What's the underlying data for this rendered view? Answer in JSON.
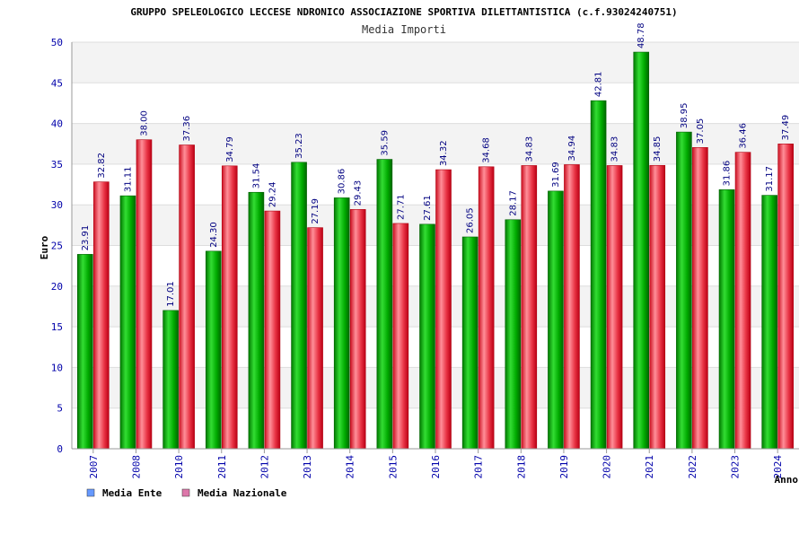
{
  "chart_data": {
    "type": "bar",
    "title": "GRUPPO SPELEOLOGICO LECCESE NDRONICO ASSOCIAZIONE SPORTIVA DILETTANTISTICA (c.f.93024240751)",
    "subtitle": "Media Importi",
    "xlabel": "Anno",
    "ylabel": "Euro",
    "ylim": [
      0,
      50
    ],
    "yticks": [
      0,
      5,
      10,
      15,
      20,
      25,
      30,
      35,
      40,
      45,
      50
    ],
    "grid": true,
    "legend_position": "bottom-left",
    "categories": [
      "2007",
      "2008",
      "2010",
      "2011",
      "2012",
      "2013",
      "2014",
      "2015",
      "2016",
      "2017",
      "2018",
      "2019",
      "2020",
      "2021",
      "2022",
      "2023",
      "2024"
    ],
    "series": [
      {
        "name": "Media Ente",
        "color": "#00bb00",
        "legend_color": "#6699ff",
        "values": [
          23.91,
          31.11,
          17.01,
          24.3,
          31.54,
          35.23,
          30.86,
          35.59,
          27.61,
          26.05,
          28.17,
          31.69,
          42.81,
          48.78,
          38.95,
          31.86,
          31.17
        ],
        "labels": [
          "23.91",
          "31.11",
          "17.01",
          "24.30",
          "31.54",
          "35.23",
          "30.86",
          "35.59",
          "27.61",
          "26.05",
          "28.17",
          "31.69",
          "42.81",
          "48.78",
          "38.95",
          "31.86",
          "31.17"
        ]
      },
      {
        "name": "Media Nazionale",
        "color": "#ee2233",
        "legend_color": "#dd77aa",
        "values": [
          32.82,
          38.0,
          37.36,
          34.79,
          29.24,
          27.19,
          29.43,
          27.71,
          34.32,
          34.68,
          34.83,
          34.94,
          34.83,
          34.85,
          37.05,
          36.46,
          37.49
        ],
        "labels": [
          "32.82",
          "38.00",
          "37.36",
          "34.79",
          "29.24",
          "27.19",
          "29.43",
          "27.71",
          "34.32",
          "34.68",
          "34.83",
          "34.94",
          "34.83",
          "34.85",
          "37.05",
          "36.46",
          "37.49"
        ]
      }
    ]
  }
}
